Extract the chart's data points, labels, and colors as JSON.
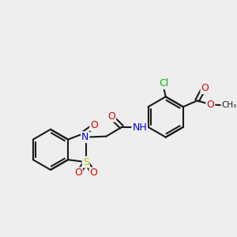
{
  "bg_color": "#eeeeee",
  "bond_color": "#1a1a1a",
  "atom_colors": {
    "N": "#0000dd",
    "O": "#dd0000",
    "S": "#bbbb00",
    "Cl": "#00bb00",
    "C": "#1a1a1a",
    "H": "#666666"
  },
  "figsize": [
    3.0,
    3.0
  ],
  "dpi": 100
}
